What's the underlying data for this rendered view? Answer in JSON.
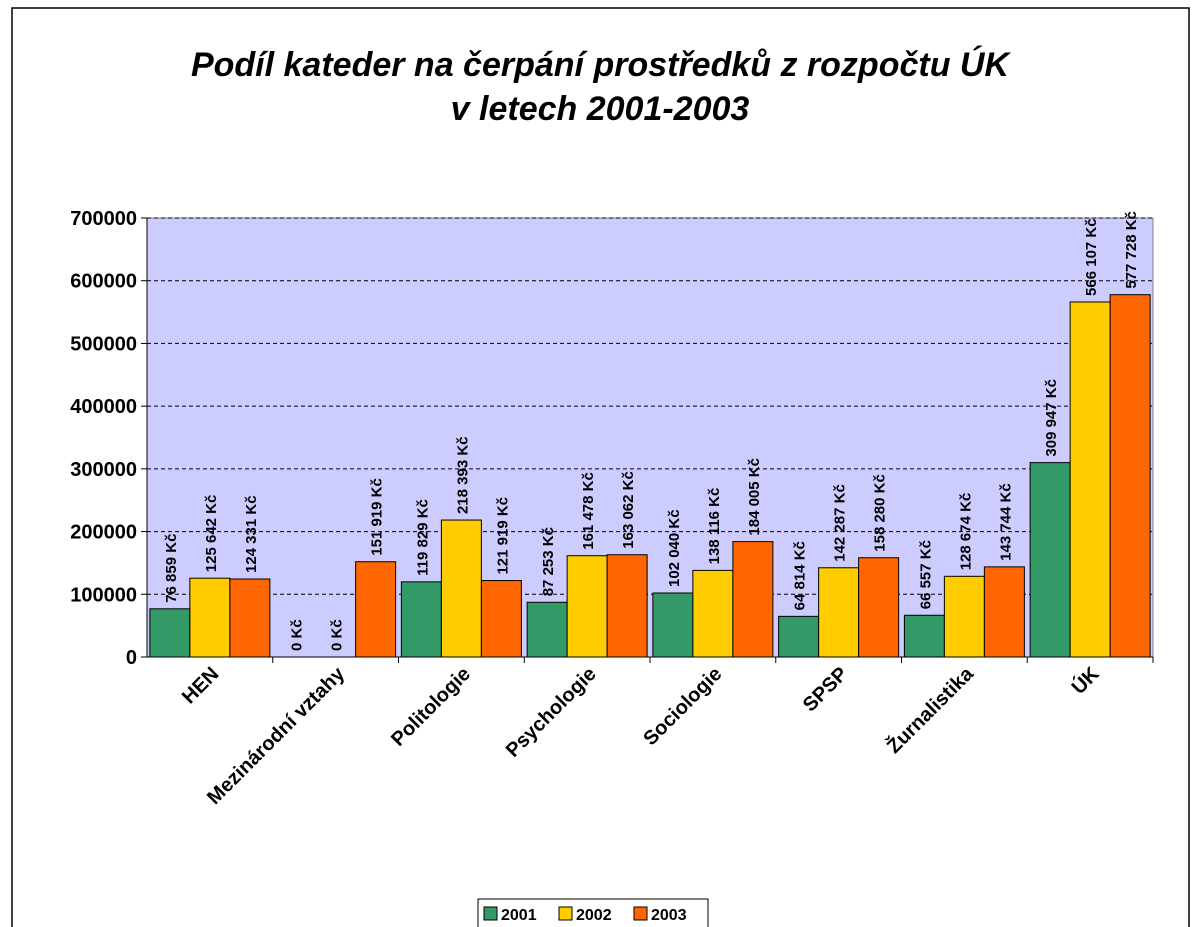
{
  "chart_data": {
    "type": "bar",
    "title": [
      "Podíl kateder na čerpání prostředků z rozpočtu ÚK",
      "v letech 2001-2003"
    ],
    "categories": [
      "HEN",
      "Mezinárodní vztahy",
      "Politologie",
      "Psychologie",
      "Sociologie",
      "SPSP",
      "Žurnalistika",
      "ÚK"
    ],
    "series": [
      {
        "name": "2001",
        "color": "#339966",
        "values": [
          76859,
          0,
          119829,
          87253,
          102040,
          64814,
          66557,
          309947
        ],
        "value_labels": [
          "76 859 Kč",
          "0 Kč",
          "119 829 Kč",
          "87 253 Kč",
          "102 040 Kč",
          "64 814 Kč",
          "66 557 Kč",
          "309 947 Kč"
        ]
      },
      {
        "name": "2002",
        "color": "#ffcc00",
        "values": [
          125642,
          0,
          218393,
          161478,
          138116,
          142287,
          128674,
          566107
        ],
        "value_labels": [
          "125 642 Kč",
          "0 Kč",
          "218 393 Kč",
          "161 478 Kč",
          "138 116 Kč",
          "142 287 Kč",
          "128 674 Kč",
          "566 107 Kč"
        ]
      },
      {
        "name": "2003",
        "color": "#ff6600",
        "values": [
          124331,
          151919,
          121919,
          163062,
          184005,
          158280,
          143744,
          577728
        ],
        "value_labels": [
          "124 331 Kč",
          "151 919 Kč",
          "121 919 Kč",
          "163 062 Kč",
          "184 005 Kč",
          "158 280 Kč",
          "143 744 Kč",
          "577 728 Kč"
        ]
      }
    ],
    "ylim": [
      0,
      700000
    ],
    "yticks": [
      0,
      100000,
      200000,
      300000,
      400000,
      500000,
      600000,
      700000
    ],
    "grid": true,
    "legend": "bottom",
    "plot_background": "#ccccff"
  }
}
